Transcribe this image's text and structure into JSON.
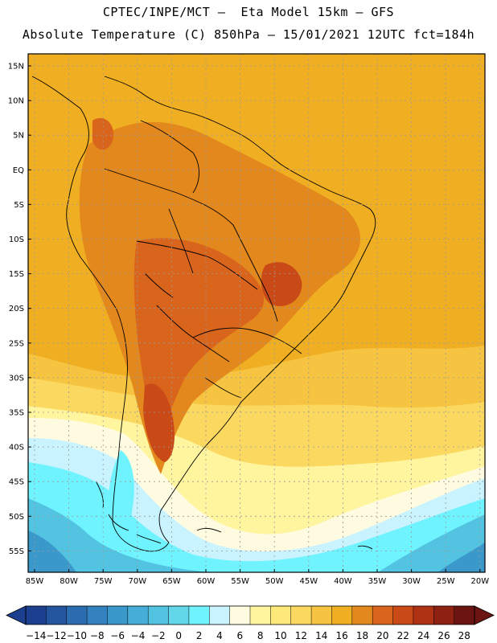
{
  "header": {
    "line1": "CPTEC/INPE/MCT –  Eta Model 15km – GFS",
    "line2": "Absolute Temperature (C) 850hPa – 15/01/2021 12UTC fct=184h"
  },
  "map": {
    "lat_labels": [
      "15N",
      "10N",
      "5N",
      "EQ",
      "5S",
      "10S",
      "15S",
      "20S",
      "25S",
      "30S",
      "35S",
      "40S",
      "45S",
      "50S",
      "55S"
    ],
    "lon_labels": [
      "85W",
      "80W",
      "75W",
      "70W",
      "65W",
      "60W",
      "55W",
      "50W",
      "45W",
      "40W",
      "35W",
      "30W",
      "25W",
      "20W"
    ],
    "grid": "dotted"
  },
  "colorbar": {
    "labels": [
      "-14",
      "-12",
      "-10",
      "-8",
      "-6",
      "-4",
      "-2",
      "0",
      "2",
      "4",
      "6",
      "8",
      "10",
      "12",
      "14",
      "16",
      "18",
      "20",
      "22",
      "24",
      "26",
      "28"
    ],
    "colors": [
      "#1c3f8f",
      "#23569e",
      "#2b6db0",
      "#3382bf",
      "#3b98cb",
      "#45aed8",
      "#52c4e2",
      "#62d7ea",
      "#6ff3ff",
      "#c9f3ff",
      "#fffbe0",
      "#fff59f",
      "#fde97a",
      "#fbd85f",
      "#f6c440",
      "#f0af22",
      "#e3881d",
      "#d9641c",
      "#c94a17",
      "#b03214",
      "#8f2112",
      "#6a1512"
    ]
  }
}
